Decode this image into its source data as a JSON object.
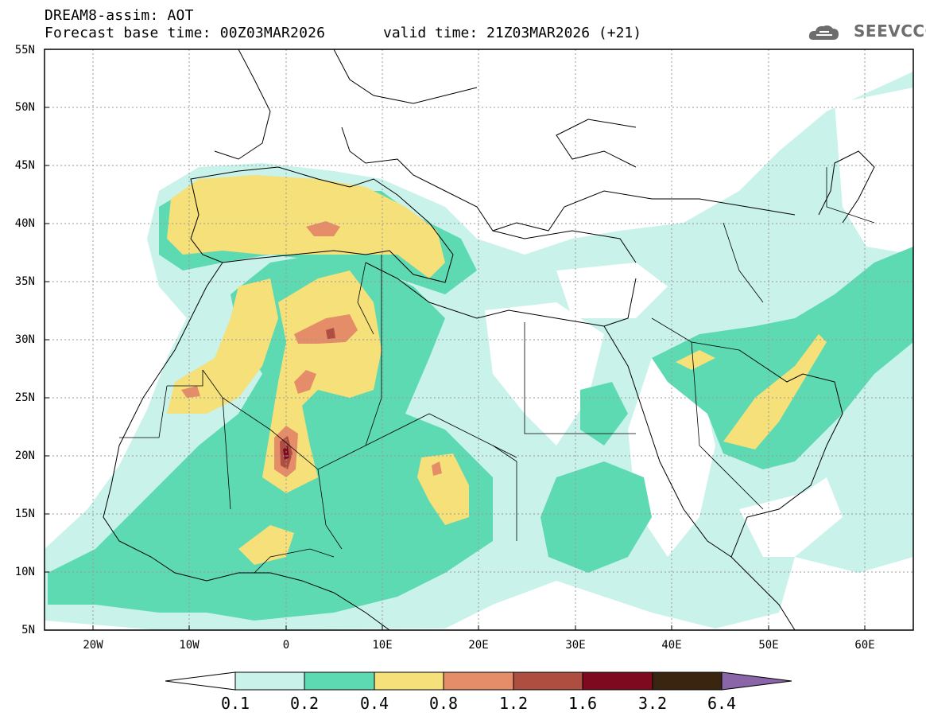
{
  "header": {
    "title": "DREAM8-assim: AOT",
    "base_time": "Forecast base time: 00Z03MAR2026",
    "valid_time": "valid time: 21Z03MAR2026 (+21)"
  },
  "logo": {
    "text": "SEEVCCC",
    "icon": "cloud-icon"
  },
  "map": {
    "variable": "AOT",
    "lat_range": [
      5,
      55
    ],
    "lon_range": [
      -25,
      65
    ],
    "lat_labels": [
      "55N",
      "50N",
      "45N",
      "40N",
      "35N",
      "30N",
      "25N",
      "20N",
      "15N",
      "10N",
      "5N"
    ],
    "lon_labels": [
      "20W",
      "10W",
      "0",
      "10E",
      "20E",
      "30E",
      "40E",
      "50E",
      "60E"
    ],
    "grid": "dotted"
  },
  "colorbar": {
    "labels": [
      "0.1",
      "0.2",
      "0.4",
      "0.8",
      "1.2",
      "1.6",
      "3.2",
      "6.4"
    ],
    "colors": [
      "#c8f2ea",
      "#5ddab2",
      "#f5e07a",
      "#e58c68",
      "#ad4e40",
      "#7e0a20",
      "#3a2510",
      "#8a66a8"
    ]
  }
}
